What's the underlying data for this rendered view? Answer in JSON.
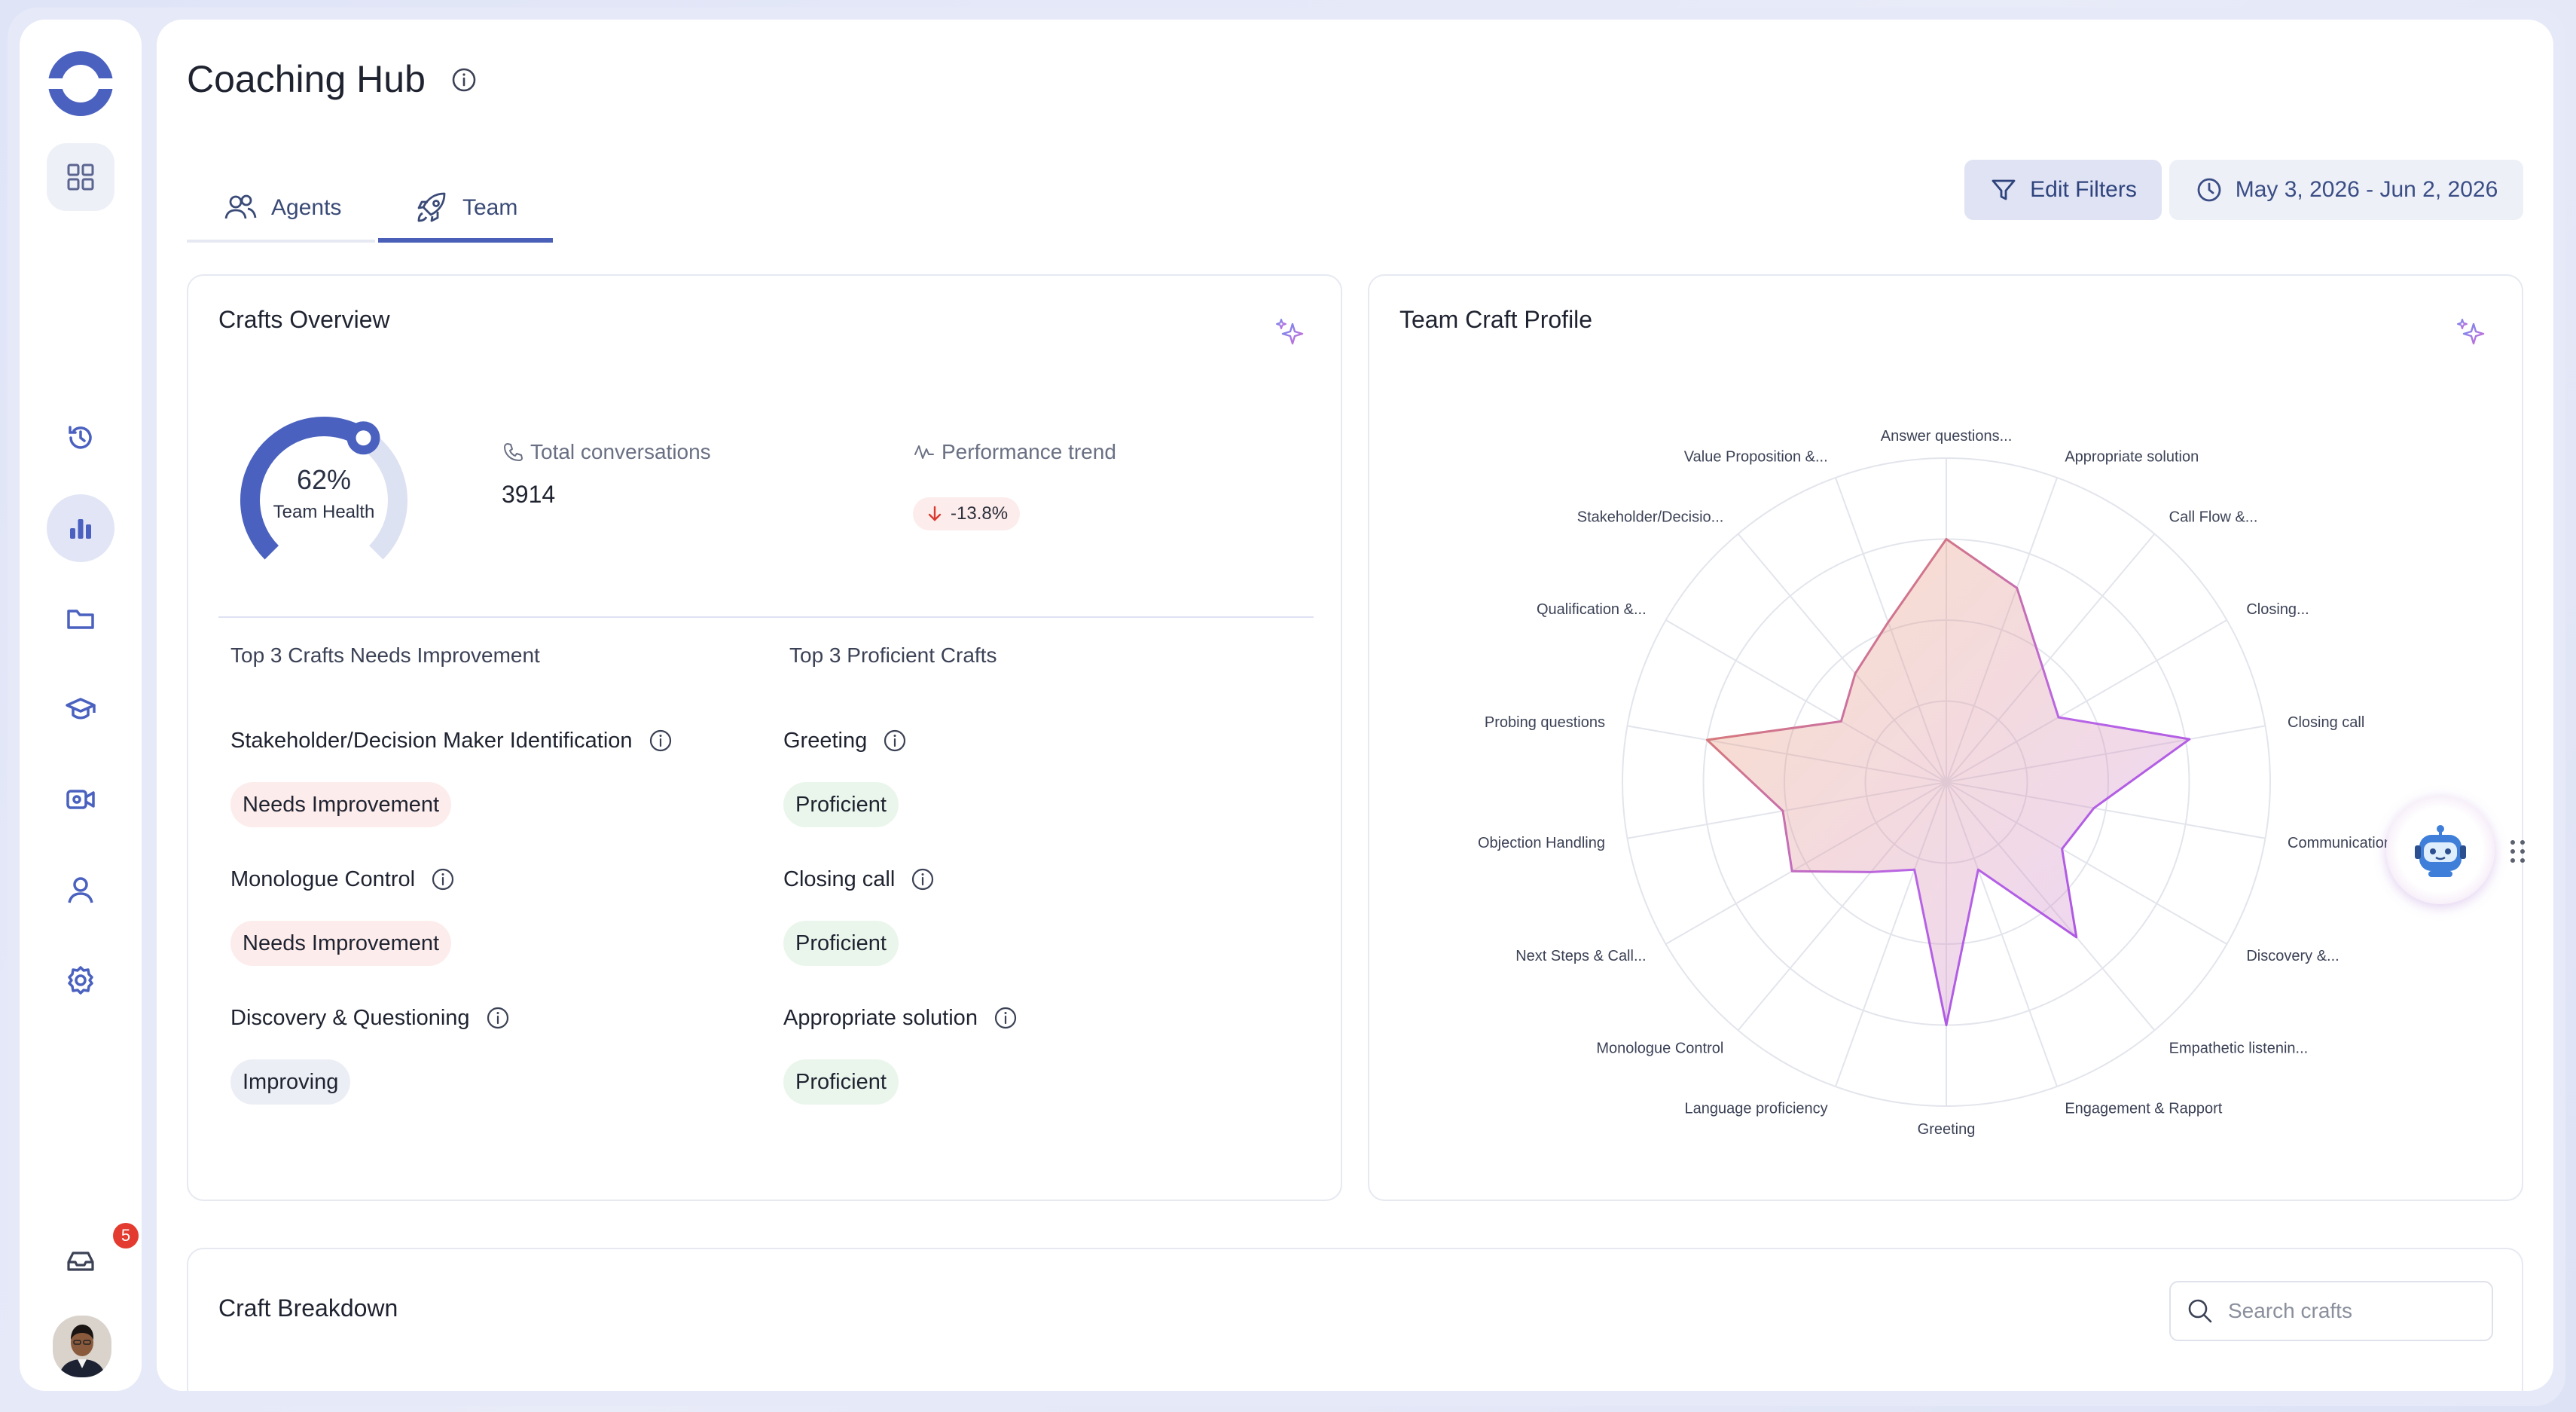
{
  "app": {
    "title": "Coaching Hub"
  },
  "sidebar": {
    "notification_count": "5",
    "items": [
      {
        "name": "apps-grid-icon"
      },
      {
        "name": "history-icon"
      },
      {
        "name": "analytics-icon",
        "active": true
      },
      {
        "name": "folder-icon"
      },
      {
        "name": "graduation-cap-icon"
      },
      {
        "name": "video-icon"
      },
      {
        "name": "user-icon"
      },
      {
        "name": "settings-icon"
      }
    ]
  },
  "tabs": [
    {
      "label": "Agents",
      "active": false
    },
    {
      "label": "Team",
      "active": true
    }
  ],
  "toolbar": {
    "edit_filters": "Edit Filters",
    "date_range": "May 3, 2026 - Jun 2, 2026"
  },
  "overview": {
    "title": "Crafts Overview",
    "health_value": "62%",
    "health_fraction": 0.62,
    "health_label": "Team Health",
    "total_conversations_label": "Total conversations",
    "total_conversations": "3914",
    "performance_trend_label": "Performance trend",
    "performance_trend": "-13.8%",
    "needs_improvement_heading": "Top 3 Crafts Needs Improvement",
    "proficient_heading": "Top 3 Proficient Crafts",
    "needs_improvement": [
      {
        "name": "Stakeholder/Decision Maker Identification",
        "status": "Needs Improvement"
      },
      {
        "name": "Monologue Control",
        "status": "Needs Improvement"
      },
      {
        "name": "Discovery & Questioning",
        "status": "Improving"
      }
    ],
    "proficient": [
      {
        "name": "Greeting",
        "status": "Proficient"
      },
      {
        "name": "Closing call",
        "status": "Proficient"
      },
      {
        "name": "Appropriate solution",
        "status": "Proficient"
      }
    ]
  },
  "profile": {
    "title": "Team Craft Profile"
  },
  "chart_data": {
    "type": "radar",
    "title": "Team Craft Profile",
    "categories": [
      "Answer questions...",
      "Appropriate solution",
      "Call Flow &...",
      "Closing...",
      "Closing call",
      "Communication...",
      "Discovery &...",
      "Empathetic listenin...",
      "Engagement & Rapport",
      "Greeting",
      "Language proficiency",
      "Monologue Control",
      "Next Steps & Call...",
      "Objection Handling",
      "Probing questions",
      "Qualification &...",
      "Stakeholder/Decisio...",
      "Value Proposition &..."
    ],
    "rmax": 4,
    "series": [
      {
        "values": [
          3.0,
          2.55,
          1.85,
          1.6,
          3.05,
          1.85,
          1.65,
          2.5,
          1.15,
          3.0,
          1.15,
          1.45,
          2.2,
          2.05,
          3.0,
          1.5,
          1.75,
          2.1
        ]
      }
    ],
    "color_low": "#f0a060",
    "color_high": "#c98bf0",
    "grid": true
  },
  "breakdown": {
    "title": "Craft Breakdown",
    "search_placeholder": "Search crafts"
  }
}
